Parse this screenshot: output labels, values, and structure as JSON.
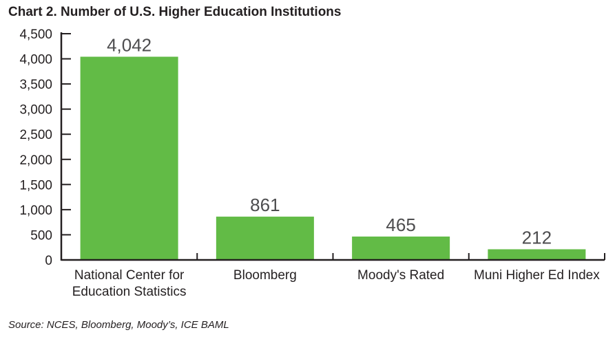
{
  "chart_data": {
    "type": "bar",
    "title": "Chart 2. Number of U.S. Higher Education Institutions",
    "categories": [
      [
        "National Center for",
        "Education Statistics"
      ],
      [
        "Bloomberg"
      ],
      [
        "Moody's Rated"
      ],
      [
        "Muni Higher Ed Index"
      ]
    ],
    "values": [
      4042,
      861,
      465,
      212
    ],
    "value_labels": [
      "4,042",
      "861",
      "465",
      "212"
    ],
    "ylim": [
      0,
      4500
    ],
    "yticks": [
      0,
      500,
      1000,
      1500,
      2000,
      2500,
      3000,
      3500,
      4000,
      4500
    ],
    "ytick_labels": [
      "0",
      "500",
      "1,000",
      "1,500",
      "2,000",
      "2,500",
      "3,000",
      "3,500",
      "4,000",
      "4,500"
    ],
    "xlabel": "",
    "ylabel": "",
    "grid": false,
    "bar_color": "#62bb46",
    "axis_color": "#231f20"
  },
  "source": "Source: NCES, Bloomberg, Moody’s, ICE BAML"
}
